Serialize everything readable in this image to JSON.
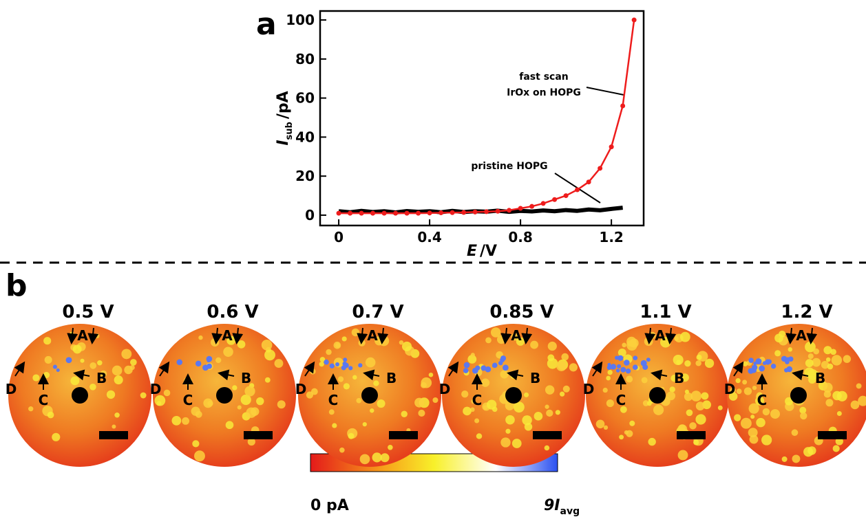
{
  "chart_data": {
    "type": "line",
    "panel_label": "a",
    "x_label": "E",
    "x_label_unit": "/V",
    "y_label": "I",
    "y_label_sub": "sub",
    "y_label_unit": "/pA",
    "xlim": [
      -0.082,
      1.342
    ],
    "ylim": [
      -5.3,
      104.6
    ],
    "xticks": [
      0,
      0.4,
      0.8,
      1.2
    ],
    "yticks": [
      0,
      20,
      40,
      60,
      80,
      100
    ],
    "annotations": [
      "fast scan",
      "IrOx on HOPG",
      "pristine HOPG"
    ],
    "series": [
      {
        "color": "#ee1c1c",
        "x": [
          0,
          0.05,
          0.1,
          0.15,
          0.2,
          0.25,
          0.3,
          0.35,
          0.4,
          0.45,
          0.5,
          0.55,
          0.6,
          0.65,
          0.7,
          0.75,
          0.8,
          0.85,
          0.9,
          0.95,
          1.0,
          1.05,
          1.1,
          1.15,
          1.2,
          1.25,
          1.3
        ],
        "values": [
          1,
          1,
          1,
          1,
          1,
          1,
          1,
          1,
          1.1,
          1.2,
          1.3,
          1.4,
          1.6,
          1.8,
          2,
          2.5,
          3.5,
          4.5,
          6,
          8,
          10,
          13,
          17,
          24,
          35,
          56,
          100
        ]
      },
      {
        "color": "#000000",
        "x": [
          0,
          0.05,
          0.1,
          0.15,
          0.2,
          0.25,
          0.3,
          0.35,
          0.4,
          0.45,
          0.5,
          0.55,
          0.6,
          0.65,
          0.7,
          0.75,
          0.8,
          0.85,
          0.9,
          0.95,
          1.0,
          1.05,
          1.1,
          1.15,
          1.2,
          1.25
        ],
        "values": [
          2,
          1.5,
          2.2,
          1.6,
          2,
          1.4,
          2.1,
          1.7,
          2,
          1.5,
          2.2,
          1.6,
          2,
          1.8,
          2.3,
          1.7,
          2.2,
          1.9,
          2.4,
          2,
          2.6,
          2.2,
          2.9,
          2.5,
          3.2,
          3.8
        ]
      }
    ]
  },
  "panel_b": {
    "label": "b",
    "potentials": [
      "0.5 V",
      "0.6 V",
      "0.7 V",
      "0.85 V",
      "1.1 V",
      "1.2 V"
    ],
    "sites": [
      "A",
      "B",
      "C",
      "D"
    ],
    "colorbar_min": "0 pA",
    "colorbar_max": "9I",
    "colorbar_max_sub": "avg"
  }
}
